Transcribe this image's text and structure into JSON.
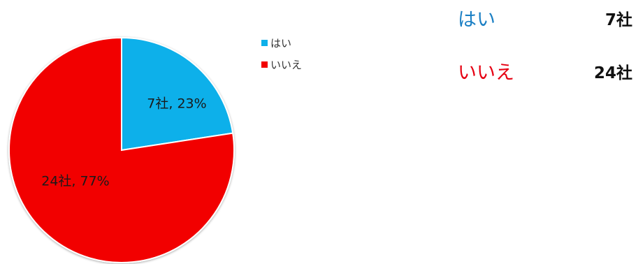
{
  "chart_data": {
    "type": "pie",
    "categories": [
      "はい",
      "いいえ"
    ],
    "values": [
      7,
      24
    ],
    "percentages": [
      23,
      77
    ],
    "data_labels": [
      "7社, 23%",
      "24社, 77%"
    ],
    "colors": [
      "#0db0ea",
      "#f20000"
    ],
    "legend": {
      "position": "right",
      "entries": [
        "はい",
        "いいえ"
      ]
    }
  },
  "summary": {
    "rows": [
      {
        "label": "はい",
        "value": "7社",
        "color": "#1a7fc4"
      },
      {
        "label": "いいえ",
        "value": "24社",
        "color": "#e60012"
      }
    ]
  }
}
